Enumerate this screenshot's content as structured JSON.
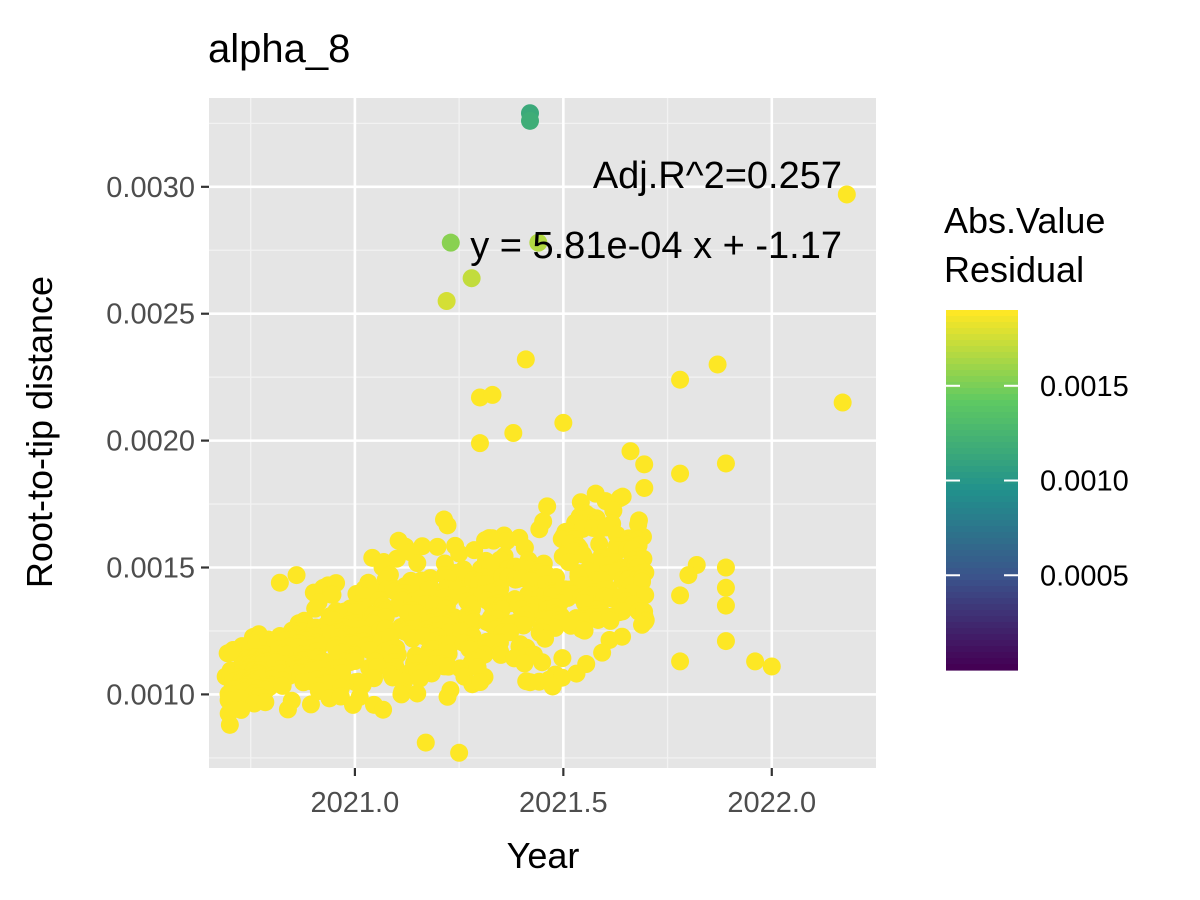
{
  "chart_data": {
    "type": "scatter",
    "title": "alpha_8",
    "xlabel": "Year",
    "ylabel": "Root-to-tip distance",
    "xlim": [
      2020.65,
      2022.25
    ],
    "ylim": [
      0.00071,
      0.00335
    ],
    "x_ticks": [
      2021.0,
      2021.5,
      2022.0
    ],
    "x_tick_labels": [
      "2021.0",
      "2021.5",
      "2022.0"
    ],
    "y_ticks": [
      0.001,
      0.0015,
      0.002,
      0.0025,
      0.003
    ],
    "y_tick_labels": [
      "0.0010",
      "0.0015",
      "0.0020",
      "0.0025",
      "0.0030"
    ],
    "grid": true,
    "regression": {
      "slope": 0.000581,
      "intercept": -1.17
    },
    "annotations": [
      "Adj.R^2=0.257",
      "y = 5.81e-04 x + -1.17"
    ],
    "legend": {
      "title_lines": [
        "Abs.Value",
        "Residual"
      ],
      "position": "right",
      "scale_min": 0.0,
      "scale_max": 0.0019,
      "ticks": [
        0.0005,
        0.001,
        0.0015
      ],
      "tick_labels": [
        "0.0005",
        "0.0010",
        "0.0015"
      ],
      "colors": [
        "#440154",
        "#3b528b",
        "#21918c",
        "#5ec962",
        "#fde725"
      ]
    },
    "outlier_points": [
      {
        "x": 2021.42,
        "y": 0.00329
      },
      {
        "x": 2021.42,
        "y": 0.00326
      },
      {
        "x": 2022.18,
        "y": 0.00297
      },
      {
        "x": 2021.23,
        "y": 0.00278
      },
      {
        "x": 2021.44,
        "y": 0.00278
      },
      {
        "x": 2021.28,
        "y": 0.00264
      },
      {
        "x": 2021.22,
        "y": 0.00255
      },
      {
        "x": 2021.41,
        "y": 0.00232
      },
      {
        "x": 2021.87,
        "y": 0.0023
      },
      {
        "x": 2021.78,
        "y": 0.00224
      },
      {
        "x": 2021.33,
        "y": 0.00218
      },
      {
        "x": 2021.3,
        "y": 0.00217
      },
      {
        "x": 2022.17,
        "y": 0.00215
      },
      {
        "x": 2021.5,
        "y": 0.00207
      },
      {
        "x": 2021.38,
        "y": 0.00203
      },
      {
        "x": 2021.3,
        "y": 0.00199
      },
      {
        "x": 2021.89,
        "y": 0.00191
      },
      {
        "x": 2021.78,
        "y": 0.00187
      },
      {
        "x": 2021.82,
        "y": 0.00151
      },
      {
        "x": 2021.89,
        "y": 0.0015
      },
      {
        "x": 2021.8,
        "y": 0.00147
      },
      {
        "x": 2021.89,
        "y": 0.00142
      },
      {
        "x": 2021.78,
        "y": 0.00139
      },
      {
        "x": 2021.89,
        "y": 0.00135
      },
      {
        "x": 2021.89,
        "y": 0.00121
      },
      {
        "x": 2021.78,
        "y": 0.00113
      },
      {
        "x": 2021.96,
        "y": 0.00113
      },
      {
        "x": 2022.0,
        "y": 0.00111
      },
      {
        "x": 2020.82,
        "y": 0.00144
      },
      {
        "x": 2020.86,
        "y": 0.00147
      },
      {
        "x": 2021.25,
        "y": 0.00077
      },
      {
        "x": 2021.17,
        "y": 0.00081
      },
      {
        "x": 2020.7,
        "y": 0.00088
      }
    ],
    "cloud_bands": [
      {
        "x_start": 2020.69,
        "x_end": 2020.78,
        "y_low": 0.0009,
        "y_high": 0.00126
      },
      {
        "x_start": 2020.78,
        "x_end": 2020.9,
        "y_low": 0.0009,
        "y_high": 0.00136
      },
      {
        "x_start": 2020.9,
        "x_end": 2021.0,
        "y_low": 0.0009,
        "y_high": 0.0015
      },
      {
        "x_start": 2021.0,
        "x_end": 2021.1,
        "y_low": 0.00088,
        "y_high": 0.0016
      },
      {
        "x_start": 2021.1,
        "x_end": 2021.2,
        "y_low": 0.00086,
        "y_high": 0.00168
      },
      {
        "x_start": 2021.2,
        "x_end": 2021.3,
        "y_low": 0.00085,
        "y_high": 0.00175
      },
      {
        "x_start": 2021.3,
        "x_end": 2021.4,
        "y_low": 0.00088,
        "y_high": 0.0018
      },
      {
        "x_start": 2021.4,
        "x_end": 2021.5,
        "y_low": 0.0009,
        "y_high": 0.00185
      },
      {
        "x_start": 2021.5,
        "x_end": 2021.6,
        "y_low": 0.00096,
        "y_high": 0.00195
      },
      {
        "x_start": 2021.6,
        "x_end": 2021.7,
        "y_low": 0.00104,
        "y_high": 0.002
      }
    ]
  }
}
